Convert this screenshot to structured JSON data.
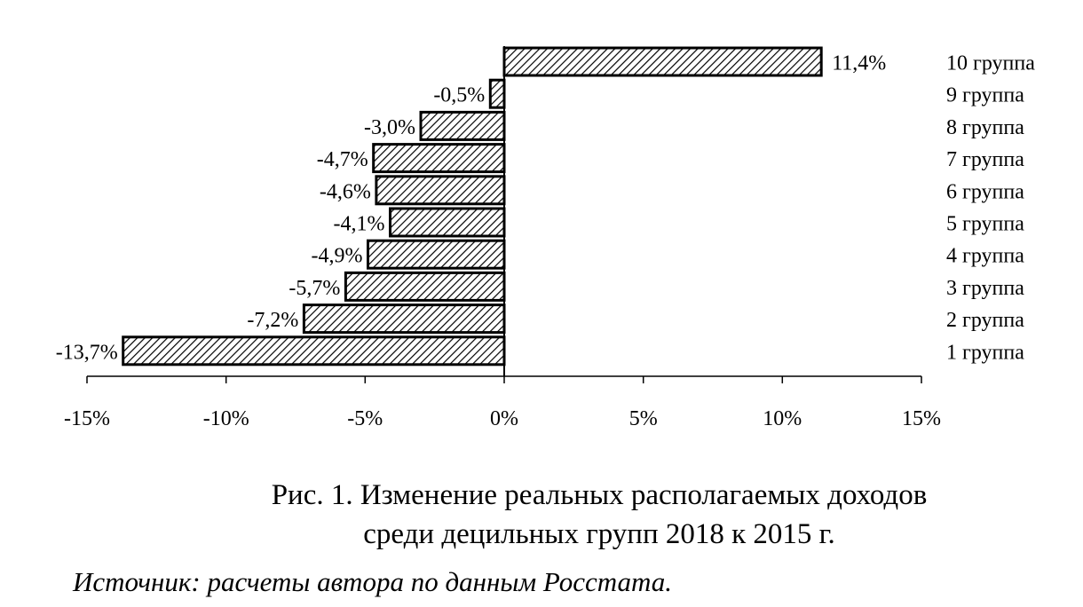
{
  "chart_data": {
    "type": "bar",
    "orientation": "horizontal",
    "categories": [
      "1 группа",
      "2 группа",
      "3 группа",
      "4 группа",
      "5 группа",
      "6 группа",
      "7 группа",
      "8 группа",
      "9 группа",
      "10  группа"
    ],
    "values": [
      -13.7,
      -7.2,
      -5.7,
      -4.9,
      -4.1,
      -4.6,
      -4.7,
      -3.0,
      -0.5,
      11.4
    ],
    "data_labels": [
      "-13,7%",
      "-7,2%",
      "-5,7%",
      "-4,9%",
      "-4,1%",
      "-4,6%",
      "-4,7%",
      "-3,0%",
      "-0,5%",
      "11,4%"
    ],
    "xlim": [
      -15,
      15
    ],
    "x_ticks": [
      -15,
      -10,
      -5,
      0,
      5,
      10,
      15
    ],
    "x_tick_labels": [
      "-15%",
      "-10%",
      "-5%",
      "0%",
      "5%",
      "10%",
      "15%"
    ],
    "grid": false,
    "legend": "none",
    "bar_fill": "diagonal-hatch",
    "colors": {
      "bar_stroke": "#000000",
      "hatch": "#000000",
      "background": "#ffffff"
    }
  },
  "caption": {
    "line1": "Рис. 1. Изменение реальных располагаемых доходов",
    "line2": "среди децильных групп 2018 к 2015 г."
  },
  "source": "Источник: расчеты автора по данным Росстата."
}
